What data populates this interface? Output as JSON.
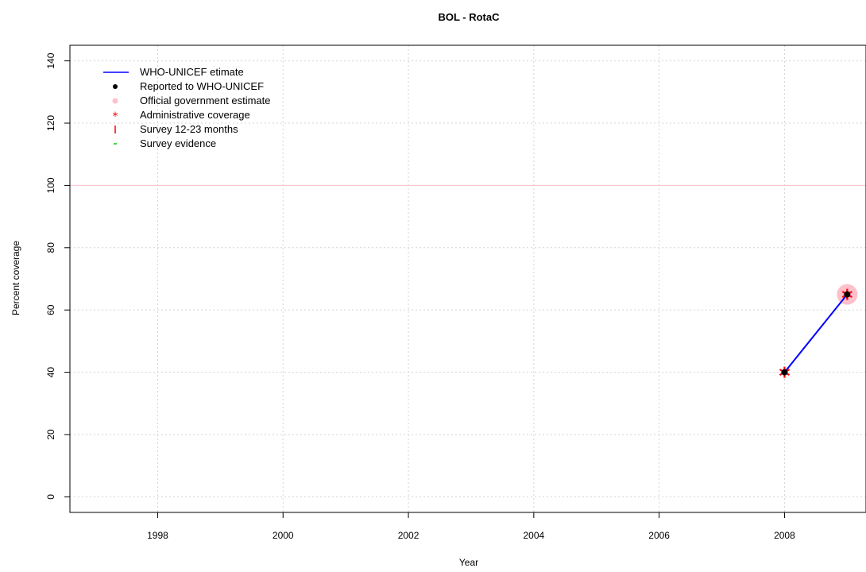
{
  "chart_data": {
    "type": "line",
    "title": "BOL  -  RotaC",
    "xlabel": "Year",
    "ylabel": "Percent coverage",
    "xlim": [
      1996.6,
      2009.3
    ],
    "ylim": [
      -5,
      145
    ],
    "x_ticks": [
      1998,
      2000,
      2002,
      2004,
      2006,
      2008
    ],
    "y_ticks": [
      0,
      20,
      40,
      60,
      80,
      100,
      120,
      140
    ],
    "grid": true,
    "reference_line": 100,
    "legend_position": "top-left",
    "series": [
      {
        "name": "WHO-UNICEF etimate",
        "kind": "line",
        "color": "#0000ff",
        "points": [
          {
            "x": 2008,
            "y": 40
          },
          {
            "x": 2009,
            "y": 65
          }
        ]
      },
      {
        "name": "Reported to WHO-UNICEF",
        "kind": "point",
        "color": "#000000",
        "points": [
          {
            "x": 2008,
            "y": 40
          },
          {
            "x": 2009,
            "y": 65
          }
        ]
      },
      {
        "name": "Official government estimate",
        "kind": "point",
        "color": "#ffc0cb",
        "points": [
          {
            "x": 2009,
            "y": 65
          }
        ]
      },
      {
        "name": "Administrative coverage",
        "kind": "star",
        "color": "#ff0000",
        "points": [
          {
            "x": 2008,
            "y": 40
          },
          {
            "x": 2009,
            "y": 65
          }
        ]
      },
      {
        "name": "Survey 12-23 months",
        "kind": "bar",
        "color": "#ff0000",
        "points": []
      },
      {
        "name": "Survey evidence",
        "kind": "dash",
        "color": "#00cc00",
        "points": []
      }
    ]
  }
}
